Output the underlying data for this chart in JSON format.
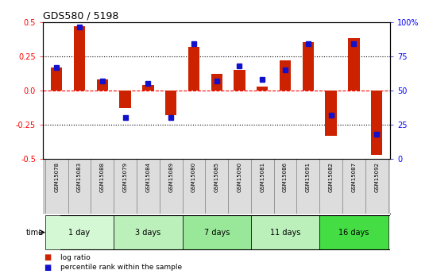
{
  "title": "GDS580 / 5198",
  "samples": [
    "GSM15078",
    "GSM15083",
    "GSM15088",
    "GSM15079",
    "GSM15084",
    "GSM15089",
    "GSM15080",
    "GSM15085",
    "GSM15090",
    "GSM15081",
    "GSM15086",
    "GSM15091",
    "GSM15082",
    "GSM15087",
    "GSM15092"
  ],
  "log_ratio": [
    0.17,
    0.47,
    0.08,
    -0.13,
    0.04,
    -0.18,
    0.32,
    0.12,
    0.15,
    0.03,
    0.22,
    0.35,
    -0.33,
    0.38,
    -0.47
  ],
  "percentile": [
    67,
    96,
    57,
    30,
    55,
    30,
    84,
    57,
    68,
    58,
    65,
    84,
    32,
    84,
    18
  ],
  "groups": [
    {
      "label": "1 day",
      "start": 0,
      "end": 3,
      "color": "#d4f7d4"
    },
    {
      "label": "3 days",
      "start": 3,
      "end": 6,
      "color": "#bbf0bb"
    },
    {
      "label": "7 days",
      "start": 6,
      "end": 9,
      "color": "#99e899"
    },
    {
      "label": "11 days",
      "start": 9,
      "end": 12,
      "color": "#bbf0bb"
    },
    {
      "label": "16 days",
      "start": 12,
      "end": 15,
      "color": "#44dd44"
    }
  ],
  "bar_color": "#cc2200",
  "marker_color": "#1111cc",
  "ylim_left": [
    -0.5,
    0.5
  ],
  "ylim_right": [
    0,
    100
  ],
  "yticks_left": [
    -0.5,
    -0.25,
    0.0,
    0.25,
    0.5
  ],
  "yticks_right": [
    0,
    25,
    50,
    75,
    100
  ],
  "hlines": [
    -0.25,
    0.0,
    0.25
  ],
  "hline_styles": [
    "dotted",
    "dashed",
    "dotted"
  ],
  "hline_colors": [
    "black",
    "red",
    "black"
  ],
  "background_color": "#ffffff",
  "plot_bg": "#ffffff",
  "legend_items": [
    "log ratio",
    "percentile rank within the sample"
  ],
  "time_label": "time"
}
